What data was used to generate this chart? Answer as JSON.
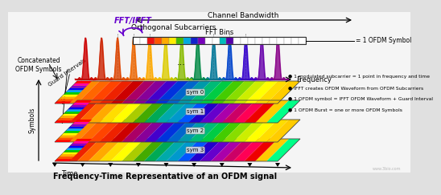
{
  "title": "Frequency-Time Representative of an OFDM signal",
  "channel_bandwidth_label": "Channel Bandwidth",
  "fft_bins_label": "FFT Bins",
  "ofdm_symbol_label": "= 1 OFDM Symbol",
  "orthogonal_subcarriers_label": "Orthogonal Subcarriers",
  "frequency_label": "Frequency",
  "guard_intervals_label": "Guard Intervals",
  "concatenated_label": "Concatenated\nOFDM Symbols",
  "fft_ifft_label": "FFT/IFFT",
  "symbols_label": "Symbols",
  "time_label": "Time",
  "sym_labels": [
    "sym 0",
    "sym 1",
    "sym 2",
    "sym 3"
  ],
  "bullet_points": [
    "1 modulated subcarrier = 1 point in frequency and time",
    "IFFT creates OFDM Waveform from OFDM Subcarriers",
    "1 OFDM symbol = IFFT OFDM Waveform + Guard Interval",
    "1 OFDM Burst = one or more OFDM Symbols"
  ],
  "bin_colors": [
    "#ffffff",
    "#ffffff",
    "#ee1111",
    "#ff5500",
    "#ffaa00",
    "#ffee00",
    "#44bb00",
    "#00aadd",
    "#1122cc",
    "#7700bb",
    "#ffffff",
    "#ffffff",
    "#00bbbb",
    "#5500aa",
    "#ffffff",
    "#ffffff",
    "#ffffff",
    "#ffffff",
    "#ffffff",
    "#ffffff",
    "#ffffff",
    "#ffffff",
    "#ffffff",
    "#ffffff"
  ],
  "subcarrier_colors": [
    "#cc0000",
    "#cc2200",
    "#dd4400",
    "#ee6600",
    "#ffaa00",
    "#ddcc00",
    "#88bb00",
    "#008844",
    "#007799",
    "#0044cc",
    "#3300cc",
    "#6600aa",
    "#880088"
  ],
  "stripe_colors_top": [
    "#ff0000",
    "#ee2200",
    "#ff6600",
    "#ffaa00",
    "#ffdd00",
    "#ffff00",
    "#aacc00",
    "#44aa00",
    "#00aa55",
    "#00aaaa",
    "#0099cc",
    "#0055ff",
    "#2200cc",
    "#6600cc",
    "#aa00aa",
    "#cc0066",
    "#ff0055",
    "#ee0000",
    "#ffcc00",
    "#00ff88"
  ],
  "stripe_colors_bottom": [
    "#ffaa00",
    "#ff8800",
    "#ff6600",
    "#ff4400",
    "#ee2200",
    "#cc0000",
    "#aa0066",
    "#880099",
    "#4400cc",
    "#0033dd",
    "#0066cc",
    "#0099aa",
    "#00bb77",
    "#00cc44",
    "#44cc00",
    "#88dd00",
    "#ccee00",
    "#ffff00",
    "#ffdd00",
    "#ffcc00"
  ],
  "fig_bg": "#e0e0e0",
  "white_bg": "#f5f5f5"
}
